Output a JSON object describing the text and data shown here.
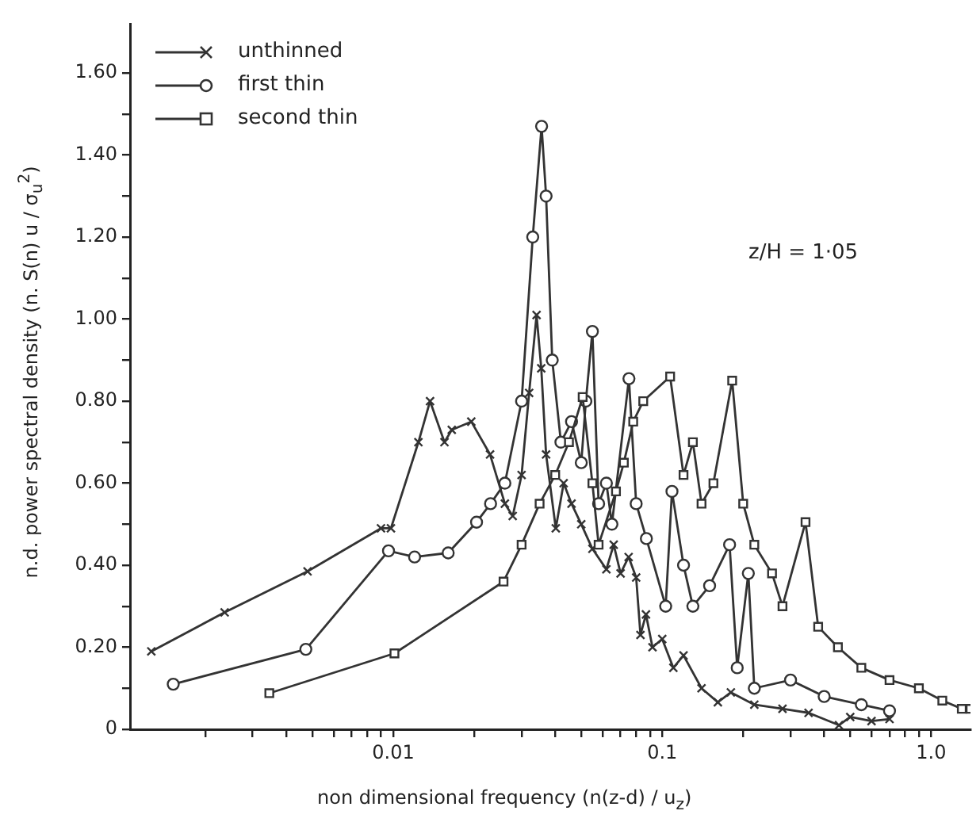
{
  "chart_data": {
    "type": "line",
    "xlabel": "non dimensional frequency (n(z-d) / u$_{z}$)",
    "ylabel": "n.d. power spectral density (n. S(n) u / σ$_{u}$$^{2}$)",
    "annotations": [
      "z/H = 1·05"
    ],
    "log": "x",
    "grid": false,
    "legend": "top left",
    "line_style": "solid",
    "xlim": [
      0.00105,
      1.4
    ],
    "xticks": [
      {
        "value": 0.002,
        "label": null
      },
      {
        "value": 0.003,
        "label": null
      },
      {
        "value": 0.004,
        "label": null
      },
      {
        "value": 0.005,
        "label": null
      },
      {
        "value": 0.006,
        "label": null
      },
      {
        "value": 0.007,
        "label": null
      },
      {
        "value": 0.008,
        "label": null
      },
      {
        "value": 0.009,
        "label": null
      },
      {
        "value": 0.01,
        "label": "0.01"
      },
      {
        "value": 0.02,
        "label": null
      },
      {
        "value": 0.03,
        "label": null
      },
      {
        "value": 0.04,
        "label": null
      },
      {
        "value": 0.05,
        "label": null
      },
      {
        "value": 0.06,
        "label": null
      },
      {
        "value": 0.07,
        "label": null
      },
      {
        "value": 0.08,
        "label": null
      },
      {
        "value": 0.09,
        "label": null
      },
      {
        "value": 0.1,
        "label": "0.1"
      },
      {
        "value": 0.2,
        "label": null
      },
      {
        "value": 0.3,
        "label": null
      },
      {
        "value": 0.4,
        "label": null
      },
      {
        "value": 0.5,
        "label": null
      },
      {
        "value": 0.6,
        "label": null
      },
      {
        "value": 0.7,
        "label": null
      },
      {
        "value": 0.8,
        "label": null
      },
      {
        "value": 0.9,
        "label": null
      },
      {
        "value": 1,
        "label": "1.0"
      }
    ],
    "ylim": [
      0,
      1.72
    ],
    "yticks": [
      {
        "value": 0,
        "label": "0"
      },
      {
        "value": 0.1,
        "label": null
      },
      {
        "value": 0.2,
        "label": "0.20"
      },
      {
        "value": 0.3,
        "label": null
      },
      {
        "value": 0.4,
        "label": "0.40"
      },
      {
        "value": 0.5,
        "label": null
      },
      {
        "value": 0.6,
        "label": "0.60"
      },
      {
        "value": 0.7,
        "label": null
      },
      {
        "value": 0.8,
        "label": "0.80"
      },
      {
        "value": 0.9,
        "label": null
      },
      {
        "value": 1,
        "label": "1.00"
      },
      {
        "value": 1.1,
        "label": null
      },
      {
        "value": 1.2,
        "label": "1.20"
      },
      {
        "value": 1.3,
        "label": null
      },
      {
        "value": 1.4,
        "label": "1.40"
      },
      {
        "value": 1.5,
        "label": null
      },
      {
        "value": 1.6,
        "label": "1.60"
      }
    ],
    "series": [
      {
        "name": "unthinned",
        "color": "#333333",
        "marker": "cross",
        "x": [
          0.00126,
          0.00236,
          0.0048,
          0.009,
          0.0098,
          0.0124,
          0.0137,
          0.0155,
          0.0165,
          0.0195,
          0.0229,
          0.026,
          0.0278,
          0.03,
          0.032,
          0.0341,
          0.0355,
          0.037,
          0.0402,
          0.043,
          0.046,
          0.05,
          0.055,
          0.062,
          0.066,
          0.07,
          0.075,
          0.08,
          0.083,
          0.087,
          0.092,
          0.1,
          0.11,
          0.12,
          0.14,
          0.161,
          0.18,
          0.22,
          0.28,
          0.35,
          0.454,
          0.5,
          0.6,
          0.7
        ],
        "values": [
          0.19,
          0.285,
          0.385,
          0.49,
          0.49,
          0.7,
          0.8,
          0.7,
          0.73,
          0.75,
          0.67,
          0.55,
          0.52,
          0.62,
          0.82,
          1.01,
          0.88,
          0.67,
          0.49,
          0.6,
          0.55,
          0.5,
          0.44,
          0.39,
          0.45,
          0.38,
          0.42,
          0.37,
          0.23,
          0.28,
          0.2,
          0.22,
          0.15,
          0.18,
          0.1,
          0.066,
          0.09,
          0.06,
          0.05,
          0.04,
          0.01,
          0.03,
          0.02,
          0.025
        ]
      },
      {
        "name": "first thin",
        "color": "#333333",
        "marker": "circle",
        "x": [
          0.00152,
          0.00473,
          0.0096,
          0.012,
          0.016,
          0.0204,
          0.023,
          0.026,
          0.03,
          0.033,
          0.0356,
          0.037,
          0.039,
          0.042,
          0.046,
          0.05,
          0.052,
          0.055,
          0.058,
          0.062,
          0.065,
          0.0752,
          0.08,
          0.0873,
          0.103,
          0.1087,
          0.12,
          0.13,
          0.15,
          0.178,
          0.19,
          0.209,
          0.22,
          0.3,
          0.4,
          0.55,
          0.7
        ],
        "values": [
          0.11,
          0.195,
          0.435,
          0.42,
          0.43,
          0.505,
          0.55,
          0.6,
          0.8,
          1.2,
          1.47,
          1.3,
          0.9,
          0.7,
          0.75,
          0.65,
          0.8,
          0.97,
          0.55,
          0.6,
          0.5,
          0.855,
          0.55,
          0.465,
          0.3,
          0.58,
          0.4,
          0.3,
          0.35,
          0.45,
          0.15,
          0.38,
          0.1,
          0.12,
          0.08,
          0.06,
          0.045
        ]
      },
      {
        "name": "second thin",
        "color": "#333333",
        "marker": "square",
        "x": [
          0.00346,
          0.0101,
          0.0257,
          0.03,
          0.035,
          0.04,
          0.045,
          0.0506,
          0.055,
          0.058,
          0.0673,
          0.072,
          0.078,
          0.085,
          0.107,
          0.12,
          0.13,
          0.14,
          0.155,
          0.182,
          0.2,
          0.22,
          0.256,
          0.28,
          0.341,
          0.38,
          0.45,
          0.55,
          0.7,
          0.9,
          1.1,
          1.3,
          1.4
        ],
        "values": [
          0.088,
          0.185,
          0.36,
          0.45,
          0.55,
          0.62,
          0.7,
          0.81,
          0.6,
          0.45,
          0.58,
          0.65,
          0.75,
          0.8,
          0.86,
          0.62,
          0.7,
          0.55,
          0.6,
          0.85,
          0.55,
          0.45,
          0.38,
          0.3,
          0.505,
          0.25,
          0.2,
          0.15,
          0.12,
          0.1,
          0.07,
          0.05,
          0.05
        ]
      }
    ]
  }
}
